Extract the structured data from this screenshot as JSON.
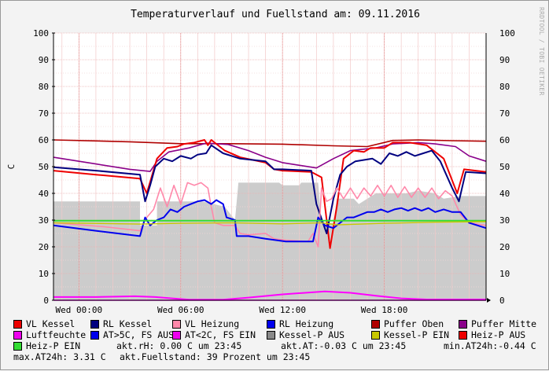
{
  "chart_data": {
    "type": "line",
    "title": "Temperaturverlauf und Fuellstand am: 09.11.2016",
    "ylabel": "C",
    "ylim": [
      0,
      100
    ],
    "y_ticks": [
      "0",
      "10",
      "20",
      "30",
      "40",
      "50",
      "60",
      "70",
      "80",
      "90",
      "100"
    ],
    "x_range_hours": [
      -1.5,
      24
    ],
    "x_ticks": [
      {
        "label": "Wed 00:00",
        "hour": 0
      },
      {
        "label": "Wed 06:00",
        "hour": 6
      },
      {
        "label": "Wed 12:00",
        "hour": 12
      },
      {
        "label": "Wed 18:00",
        "hour": 18
      }
    ],
    "grid": true,
    "area": {
      "name": "Fuellstand",
      "color": "#cccccc",
      "points": [
        [
          -1.5,
          37
        ],
        [
          3.6,
          37
        ],
        [
          3.6,
          28
        ],
        [
          4.6,
          28
        ],
        [
          4.6,
          37
        ],
        [
          7.3,
          37
        ],
        [
          8.6,
          35
        ],
        [
          9.2,
          30
        ],
        [
          9.4,
          44
        ],
        [
          11.8,
          44
        ],
        [
          12.0,
          43
        ],
        [
          13.0,
          43
        ],
        [
          13.1,
          44
        ],
        [
          14.1,
          44
        ],
        [
          14.3,
          29
        ],
        [
          15.0,
          29
        ],
        [
          15.2,
          38
        ],
        [
          16.2,
          38
        ],
        [
          16.5,
          36
        ],
        [
          17.5,
          40
        ],
        [
          19.3,
          40
        ],
        [
          20.0,
          41
        ],
        [
          21.0,
          40
        ],
        [
          21.5,
          38
        ],
        [
          22.5,
          39
        ],
        [
          24,
          39
        ]
      ]
    },
    "series": [
      {
        "name": "Puffer Oben",
        "color": "#b00000",
        "width": 1.6,
        "points": [
          [
            -1.5,
            60
          ],
          [
            3,
            59.3
          ],
          [
            6,
            58.6
          ],
          [
            9,
            58.6
          ],
          [
            12,
            58.4
          ],
          [
            15,
            57.8
          ],
          [
            17,
            57.5
          ],
          [
            18.5,
            59.8
          ],
          [
            20,
            60
          ],
          [
            22,
            59.7
          ],
          [
            24,
            59.5
          ]
        ]
      },
      {
        "name": "Puffer Mitte",
        "color": "#8a008a",
        "width": 1.6,
        "points": [
          [
            -1.5,
            53.5
          ],
          [
            1,
            51
          ],
          [
            3,
            49
          ],
          [
            4.2,
            48.2
          ],
          [
            4.6,
            52
          ],
          [
            5.3,
            55.5
          ],
          [
            6.5,
            57
          ],
          [
            7.5,
            58.8
          ],
          [
            8.8,
            58.3
          ],
          [
            10,
            56
          ],
          [
            11,
            53.5
          ],
          [
            12,
            51.5
          ],
          [
            13,
            50.5
          ],
          [
            14,
            49.5
          ],
          [
            15,
            53
          ],
          [
            16,
            56
          ],
          [
            17.5,
            57
          ],
          [
            18.5,
            58.5
          ],
          [
            20,
            59
          ],
          [
            21,
            58.5
          ],
          [
            22.2,
            57.5
          ],
          [
            23,
            54
          ],
          [
            24,
            52
          ]
        ]
      },
      {
        "name": "VL Kessel",
        "color": "#ee0000",
        "width": 2,
        "points": [
          [
            -1.5,
            48.5
          ],
          [
            1,
            47
          ],
          [
            3.6,
            45.5
          ],
          [
            4,
            40
          ],
          [
            4.6,
            53
          ],
          [
            5.2,
            57
          ],
          [
            5.8,
            57.5
          ],
          [
            6.2,
            58.5
          ],
          [
            6.8,
            59
          ],
          [
            7.4,
            60
          ],
          [
            7.6,
            58
          ],
          [
            7.8,
            60
          ],
          [
            8.6,
            56
          ],
          [
            9.5,
            53.5
          ],
          [
            11,
            51.5
          ],
          [
            11.5,
            49
          ],
          [
            12,
            48.5
          ],
          [
            13.7,
            48
          ],
          [
            14.3,
            46
          ],
          [
            14.8,
            19.5
          ],
          [
            15.2,
            35
          ],
          [
            15.6,
            53
          ],
          [
            16.2,
            56
          ],
          [
            16.8,
            55.5
          ],
          [
            17.2,
            57
          ],
          [
            18,
            57
          ],
          [
            18.5,
            59
          ],
          [
            19.5,
            59
          ],
          [
            20.5,
            58
          ],
          [
            21.5,
            53
          ],
          [
            22.3,
            40
          ],
          [
            22.7,
            49
          ],
          [
            24,
            48
          ]
        ]
      },
      {
        "name": "RL Kessel",
        "color": "#000080",
        "width": 2,
        "points": [
          [
            -1.5,
            49.8
          ],
          [
            1,
            48.5
          ],
          [
            3.6,
            47
          ],
          [
            3.9,
            37
          ],
          [
            4.2,
            43
          ],
          [
            4.5,
            50
          ],
          [
            5,
            53
          ],
          [
            5.5,
            52
          ],
          [
            6,
            54
          ],
          [
            6.6,
            53
          ],
          [
            7,
            54.5
          ],
          [
            7.5,
            55
          ],
          [
            7.8,
            58
          ],
          [
            8.5,
            55
          ],
          [
            9.5,
            53
          ],
          [
            11,
            52
          ],
          [
            11.5,
            49
          ],
          [
            12,
            49
          ],
          [
            13.7,
            48.5
          ],
          [
            14,
            36
          ],
          [
            14.6,
            25
          ],
          [
            15,
            38
          ],
          [
            15.4,
            47
          ],
          [
            15.8,
            50
          ],
          [
            16.3,
            52
          ],
          [
            16.8,
            52.5
          ],
          [
            17.3,
            53
          ],
          [
            17.8,
            51
          ],
          [
            18.3,
            55
          ],
          [
            18.8,
            54
          ],
          [
            19.3,
            55.5
          ],
          [
            19.8,
            54
          ],
          [
            20.3,
            55
          ],
          [
            20.8,
            56
          ],
          [
            21.3,
            52
          ],
          [
            22,
            42
          ],
          [
            22.4,
            37
          ],
          [
            22.8,
            48
          ],
          [
            24,
            47.5
          ]
        ]
      },
      {
        "name": "VL Heizung",
        "color": "#ff88aa",
        "width": 1.6,
        "points": [
          [
            -1.5,
            29
          ],
          [
            1.5,
            27.5
          ],
          [
            3.6,
            26
          ],
          [
            4,
            31
          ],
          [
            4.4,
            34
          ],
          [
            4.8,
            42
          ],
          [
            5.2,
            35
          ],
          [
            5.6,
            43
          ],
          [
            6,
            36
          ],
          [
            6.4,
            44
          ],
          [
            6.8,
            43
          ],
          [
            7.2,
            44
          ],
          [
            7.6,
            42
          ],
          [
            7.8,
            35
          ],
          [
            8,
            29
          ],
          [
            8.5,
            28
          ],
          [
            9.2,
            28
          ],
          [
            9.5,
            25
          ],
          [
            10,
            24.5
          ],
          [
            11,
            25
          ],
          [
            11.5,
            23
          ],
          [
            12.2,
            22.5
          ],
          [
            13.5,
            22
          ],
          [
            13.8,
            25
          ],
          [
            14.1,
            20
          ],
          [
            14.3,
            42
          ],
          [
            14.6,
            37
          ],
          [
            14.9,
            38
          ],
          [
            15.2,
            42
          ],
          [
            15.6,
            38
          ],
          [
            16,
            42
          ],
          [
            16.4,
            38
          ],
          [
            16.8,
            42
          ],
          [
            17.2,
            39
          ],
          [
            17.6,
            43
          ],
          [
            18,
            39
          ],
          [
            18.4,
            43
          ],
          [
            18.8,
            38.5
          ],
          [
            19.2,
            42.5
          ],
          [
            19.6,
            38.5
          ],
          [
            20,
            42
          ],
          [
            20.4,
            38.5
          ],
          [
            20.8,
            42
          ],
          [
            21.2,
            38
          ],
          [
            21.6,
            41
          ],
          [
            22,
            39
          ],
          [
            22.5,
            32
          ],
          [
            23,
            29
          ],
          [
            24,
            28
          ]
        ]
      },
      {
        "name": "RL Heizung",
        "color": "#0000ee",
        "width": 2,
        "points": [
          [
            -1.5,
            28
          ],
          [
            1,
            26
          ],
          [
            3.6,
            24
          ],
          [
            3.9,
            31
          ],
          [
            4.2,
            28
          ],
          [
            4.6,
            30
          ],
          [
            5,
            31
          ],
          [
            5.4,
            34
          ],
          [
            5.8,
            33
          ],
          [
            6.2,
            35
          ],
          [
            6.6,
            36
          ],
          [
            7,
            37
          ],
          [
            7.4,
            37.5
          ],
          [
            7.8,
            36
          ],
          [
            8.1,
            37.5
          ],
          [
            8.5,
            36
          ],
          [
            8.7,
            31
          ],
          [
            9.2,
            30
          ],
          [
            9.3,
            24
          ],
          [
            10,
            24
          ],
          [
            11,
            23
          ],
          [
            12.2,
            22
          ],
          [
            13.8,
            22
          ],
          [
            14.1,
            31
          ],
          [
            14.5,
            28
          ],
          [
            15,
            27
          ],
          [
            15.4,
            29
          ],
          [
            15.8,
            31
          ],
          [
            16.2,
            31
          ],
          [
            16.6,
            32
          ],
          [
            17,
            33
          ],
          [
            17.4,
            33
          ],
          [
            17.8,
            34
          ],
          [
            18.2,
            33
          ],
          [
            18.6,
            34
          ],
          [
            19,
            34.5
          ],
          [
            19.4,
            33.5
          ],
          [
            19.8,
            34.5
          ],
          [
            20.2,
            33.5
          ],
          [
            20.6,
            34.5
          ],
          [
            21,
            33
          ],
          [
            21.5,
            34
          ],
          [
            22,
            33
          ],
          [
            22.5,
            33
          ],
          [
            23,
            29
          ],
          [
            24,
            27
          ]
        ]
      },
      {
        "name": "Heiz-P EIN",
        "color": "#33dd33",
        "width": 2,
        "points": [
          [
            -1.5,
            29.8
          ],
          [
            24,
            29.8
          ]
        ]
      },
      {
        "name": "Kessel-P EIN",
        "color": "#c8c800",
        "width": 1.4,
        "points": [
          [
            -1.5,
            29
          ],
          [
            3.6,
            28.5
          ],
          [
            6,
            28.8
          ],
          [
            9,
            29
          ],
          [
            12,
            28.6
          ],
          [
            14.3,
            29
          ],
          [
            15.2,
            28.2
          ],
          [
            18,
            28.8
          ],
          [
            21,
            29.2
          ],
          [
            24,
            29.4
          ]
        ]
      },
      {
        "name": "Luftfeuchte",
        "color": "#ff00ff",
        "width": 2,
        "points": [
          [
            -1.5,
            1.2
          ],
          [
            1,
            1.2
          ],
          [
            3.3,
            1.5
          ],
          [
            4.5,
            1.2
          ],
          [
            5.5,
            0.7
          ],
          [
            6.5,
            0.2
          ],
          [
            8.5,
            0.2
          ],
          [
            10,
            1
          ],
          [
            12,
            2.2
          ],
          [
            14.5,
            3.3
          ],
          [
            16,
            2.8
          ],
          [
            17.5,
            1.7
          ],
          [
            19,
            0.7
          ],
          [
            20.5,
            0.3
          ],
          [
            24,
            0.3
          ]
        ]
      },
      {
        "name": "AT<2C, FS EIN",
        "color": "#ee00ee",
        "width": 1.4,
        "points": [
          [
            -1.5,
            0
          ],
          [
            24,
            0
          ]
        ]
      }
    ],
    "legend": [
      {
        "label": "VL Kessel",
        "color": "#ee0000"
      },
      {
        "label": "RL Kessel",
        "color": "#000080"
      },
      {
        "label": "VL Heizung",
        "color": "#ff88aa"
      },
      {
        "label": "RL Heizung",
        "color": "#0000ee"
      },
      {
        "label": "Puffer Oben",
        "color": "#b00000"
      },
      {
        "label": "Puffer Mitte",
        "color": "#8a008a"
      },
      {
        "label": "Luftfeuchte",
        "color": "#ee00ee"
      },
      {
        "label": "AT>5C, FS AUS",
        "color": "#0000ee"
      },
      {
        "label": "AT<2C, FS EIN",
        "color": "#ee00ee"
      },
      {
        "label": "Kessel-P AUS",
        "color": "#888888"
      },
      {
        "label": "Kessel-P EIN",
        "color": "#c8c800"
      },
      {
        "label": "Heiz-P AUS",
        "color": "#ee0000"
      },
      {
        "label": "Heiz-P EIN",
        "color": "#33dd33"
      }
    ]
  },
  "status": {
    "rh": "akt.rH: 0.00 C um 23:45",
    "at": "akt.AT:-0.03 C um 23:45",
    "min_at": "min.AT24h:-0.44 C",
    "max_at": "max.AT24h: 3.31 C",
    "fuellstand": "akt.Fuellstand:   39 Prozent um 23:45"
  },
  "credit": "RRDTOOL / TOBI OETIKER"
}
